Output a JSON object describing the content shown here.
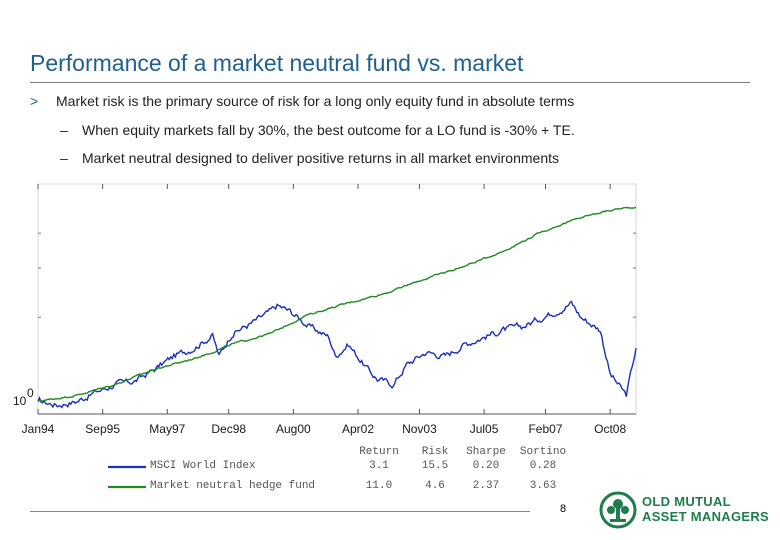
{
  "slide": {
    "title": "Performance of a market neutral fund vs. market",
    "bullets": {
      "main_marker": ">",
      "main": "Market risk is the primary source of risk for a long only equity fund in absolute terms",
      "sub_marker": "–",
      "sub1": "When equity markets fall by 30%, the best outcome for a LO fund is -30% + TE.",
      "sub2": "Market neutral designed to deliver positive returns in all market environments"
    },
    "page_number": "8",
    "logo": {
      "line1": "OLD MUTUAL",
      "line2": "ASSET MANAGERS",
      "icon": "old-mutual-tree-icon",
      "color": "#1e7d4a"
    }
  },
  "chart_data": {
    "type": "line",
    "title": "",
    "xlabel": "",
    "ylabel": "",
    "y_scale": "log",
    "y_tick_label": {
      "base": "10",
      "exponent": "0"
    },
    "x_ticks": [
      "Jan94",
      "Sep95",
      "May97",
      "Dec98",
      "Aug00",
      "Apr02",
      "Nov03",
      "Jul05",
      "Feb07",
      "Oct08"
    ],
    "xlim": [
      "1994-01",
      "2009-06"
    ],
    "ylim": [
      0.9,
      6.0
    ],
    "grid": false,
    "series": [
      {
        "name": "MSCI World Index",
        "color": "#1a2fc0",
        "x": [
          "1994-01",
          "1994-07",
          "1995-01",
          "1995-07",
          "1996-01",
          "1996-07",
          "1997-01",
          "1997-07",
          "1998-01",
          "1998-07",
          "1998-09",
          "1999-01",
          "1999-07",
          "2000-01",
          "2000-03",
          "2000-07",
          "2001-01",
          "2001-07",
          "2001-09",
          "2002-01",
          "2002-07",
          "2002-10",
          "2003-03",
          "2003-07",
          "2004-01",
          "2004-07",
          "2005-01",
          "2005-07",
          "2006-01",
          "2006-07",
          "2007-01",
          "2007-07",
          "2007-10",
          "2008-01",
          "2008-07",
          "2008-10",
          "2009-03",
          "2009-06"
        ],
        "values": [
          1.0,
          0.97,
          1.0,
          1.08,
          1.15,
          1.18,
          1.3,
          1.45,
          1.55,
          1.72,
          1.45,
          1.75,
          1.9,
          2.1,
          2.2,
          2.1,
          1.85,
          1.7,
          1.45,
          1.6,
          1.3,
          1.2,
          1.15,
          1.35,
          1.5,
          1.45,
          1.6,
          1.7,
          1.8,
          1.85,
          2.0,
          2.15,
          2.25,
          2.0,
          1.8,
          1.25,
          1.05,
          1.55
        ]
      },
      {
        "name": "Market neutral hedge fund",
        "color": "#1f8a1f",
        "x": [
          "1994-01",
          "1995-01",
          "1996-01",
          "1997-01",
          "1998-01",
          "1998-07",
          "1999-01",
          "2000-01",
          "2000-07",
          "2001-01",
          "2002-01",
          "2003-01",
          "2004-01",
          "2005-01",
          "2006-01",
          "2007-01",
          "2007-07",
          "2008-01",
          "2008-07",
          "2009-01",
          "2009-06"
        ],
        "values": [
          1.0,
          1.05,
          1.15,
          1.3,
          1.42,
          1.5,
          1.6,
          1.75,
          1.9,
          2.05,
          2.25,
          2.45,
          2.75,
          3.05,
          3.45,
          4.05,
          4.3,
          4.55,
          4.75,
          4.9,
          4.95
        ]
      }
    ],
    "stats_table": {
      "columns": [
        "Return",
        "Risk",
        "Sharpe",
        "Sortino"
      ],
      "rows": [
        {
          "name": "MSCI World Index",
          "color": "#1a2fc0",
          "values": [
            "3.1",
            "15.5",
            "0.20",
            "0.28"
          ]
        },
        {
          "name": "Market neutral hedge fund",
          "color": "#1f8a1f",
          "values": [
            "11.0",
            "4.6",
            "2.37",
            "3.63"
          ]
        }
      ]
    }
  }
}
